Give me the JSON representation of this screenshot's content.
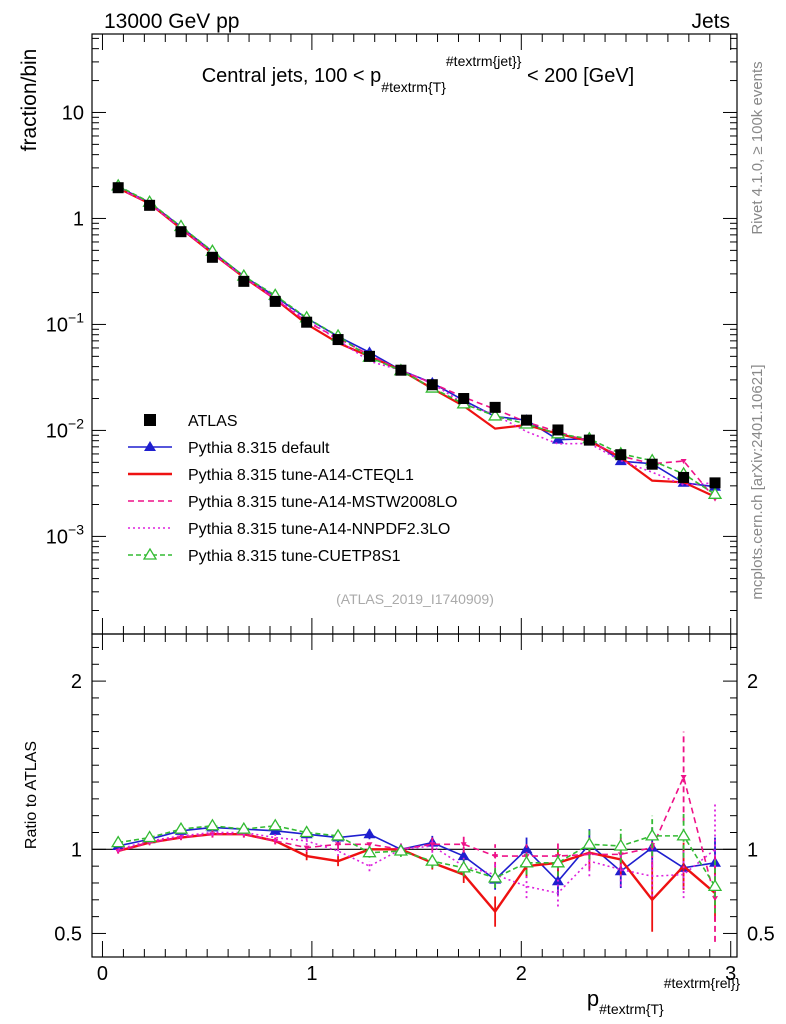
{
  "header": {
    "left": "13000 GeV pp",
    "right": "Jets"
  },
  "side_labels": {
    "rivet": "Rivet 4.1.0, ≥ 100k events",
    "mcplots": "mcplots.cern.ch [arXiv:2401.10621]"
  },
  "chart_data": {
    "type": "line",
    "title": "Central jets, 100 < p_{#textrm{T}}^{#textrm{jet}} < 200 [GeV]",
    "watermark": "(ATLAS_2019_I1740909)",
    "ylabel": "fraction/bin",
    "ratio_ylabel": "Ratio to ATLAS",
    "xlabel": "p_{#textrm{T}}^{#textrm{rel}}",
    "xlim": [
      -0.05,
      3.03
    ],
    "ylim": [
      0.00012,
      55
    ],
    "ratio_ylim": [
      0.36,
      2.28
    ],
    "xticks": [
      0,
      1,
      2,
      3
    ],
    "yticks_main": [
      {
        "v": 10,
        "base": "10",
        "exp": ""
      },
      {
        "v": 1,
        "base": "1",
        "exp": ""
      },
      {
        "v": 0.1,
        "base": "10",
        "exp": "−1"
      },
      {
        "v": 0.01,
        "base": "10",
        "exp": "−2"
      },
      {
        "v": 0.001,
        "base": "10",
        "exp": "−3"
      }
    ],
    "yticks_ratio": [
      {
        "v": 0.5,
        "label": "0.5"
      },
      {
        "v": 1,
        "label": "1"
      },
      {
        "v": 2,
        "label": "2"
      }
    ],
    "x": [
      0.075,
      0.225,
      0.375,
      0.525,
      0.675,
      0.825,
      0.975,
      1.125,
      1.275,
      1.425,
      1.575,
      1.725,
      1.875,
      2.025,
      2.175,
      2.325,
      2.475,
      2.625,
      2.775,
      2.925
    ],
    "data": {
      "name": "ATLAS",
      "color": "#000000",
      "values": [
        1.95,
        1.33,
        0.75,
        0.43,
        0.255,
        0.165,
        0.105,
        0.072,
        0.05,
        0.037,
        0.027,
        0.02,
        0.0165,
        0.0125,
        0.0101,
        0.0081,
        0.0059,
        0.0048,
        0.0036,
        0.0032
      ]
    },
    "series": [
      {
        "name": "Pythia 8.315 default",
        "color": "#1f1fcf",
        "dash": "",
        "marker": "tri-filled",
        "ratio": [
          1.02,
          1.06,
          1.11,
          1.13,
          1.12,
          1.11,
          1.09,
          1.07,
          1.09,
          1.0,
          1.04,
          0.96,
          0.82,
          1.0,
          0.81,
          1.03,
          0.87,
          1.01,
          0.89,
          0.92
        ],
        "ratio_err": [
          0.015,
          0.015,
          0.015,
          0.015,
          0.02,
          0.02,
          0.025,
          0.03,
          0.03,
          0.03,
          0.04,
          0.05,
          0.06,
          0.07,
          0.08,
          0.09,
          0.1,
          0.12,
          0.13,
          0.15
        ]
      },
      {
        "name": "Pythia 8.315 tune-A14-CTEQL1",
        "color": "#ee1111",
        "dash": "",
        "marker": "none",
        "ratio": [
          0.99,
          1.04,
          1.07,
          1.09,
          1.09,
          1.05,
          0.96,
          0.93,
          1.0,
          1.0,
          0.92,
          0.85,
          0.63,
          0.9,
          0.92,
          0.98,
          0.94,
          0.7,
          0.9,
          0.74
        ],
        "ratio_err": [
          0.015,
          0.015,
          0.015,
          0.02,
          0.02,
          0.02,
          0.025,
          0.03,
          0.03,
          0.035,
          0.04,
          0.05,
          0.09,
          0.07,
          0.08,
          0.09,
          0.1,
          0.19,
          0.14,
          0.17
        ]
      },
      {
        "name": "Pythia 8.315 tune-A14-MSTW2008LO",
        "color": "#ee1188",
        "dash": "6,4",
        "marker": "tri-down",
        "ratio": [
          0.99,
          1.04,
          1.07,
          1.09,
          1.09,
          1.05,
          1.01,
          1.03,
          1.03,
          1.0,
          1.03,
          1.03,
          0.96,
          0.96,
          0.96,
          0.97,
          0.97,
          1.01,
          1.43,
          0.71
        ],
        "ratio_err": [
          0.015,
          0.015,
          0.015,
          0.02,
          0.02,
          0.02,
          0.025,
          0.03,
          0.03,
          0.035,
          0.04,
          0.05,
          0.07,
          0.07,
          0.08,
          0.09,
          0.1,
          0.12,
          0.27,
          0.26
        ]
      },
      {
        "name": "Pythia 8.315 tune-A14-NNPDF2.3LO",
        "color": "#dd22dd",
        "dash": "2,3",
        "marker": "none",
        "ratio": [
          1.0,
          1.05,
          1.08,
          1.1,
          1.1,
          1.07,
          1.05,
          0.99,
          0.9,
          1.0,
          1.02,
          0.9,
          0.85,
          0.78,
          0.74,
          0.93,
          0.88,
          0.84,
          0.85,
          1.0
        ],
        "ratio_err": [
          0.015,
          0.015,
          0.015,
          0.02,
          0.02,
          0.02,
          0.025,
          0.03,
          0.03,
          0.035,
          0.04,
          0.05,
          0.07,
          0.07,
          0.08,
          0.09,
          0.1,
          0.12,
          0.14,
          0.28
        ]
      },
      {
        "name": "Pythia 8.315 tune-CUETP8S1",
        "color": "#33bb33",
        "dash": "5,3",
        "marker": "tri-open",
        "ratio": [
          1.04,
          1.07,
          1.12,
          1.14,
          1.12,
          1.14,
          1.1,
          1.08,
          0.98,
          0.99,
          0.93,
          0.89,
          0.83,
          0.92,
          0.92,
          1.03,
          1.02,
          1.08,
          1.08,
          0.78
        ],
        "ratio_err": [
          0.015,
          0.015,
          0.015,
          0.02,
          0.02,
          0.02,
          0.025,
          0.03,
          0.03,
          0.035,
          0.04,
          0.05,
          0.06,
          0.07,
          0.08,
          0.09,
          0.1,
          0.12,
          0.13,
          0.16
        ]
      }
    ]
  }
}
